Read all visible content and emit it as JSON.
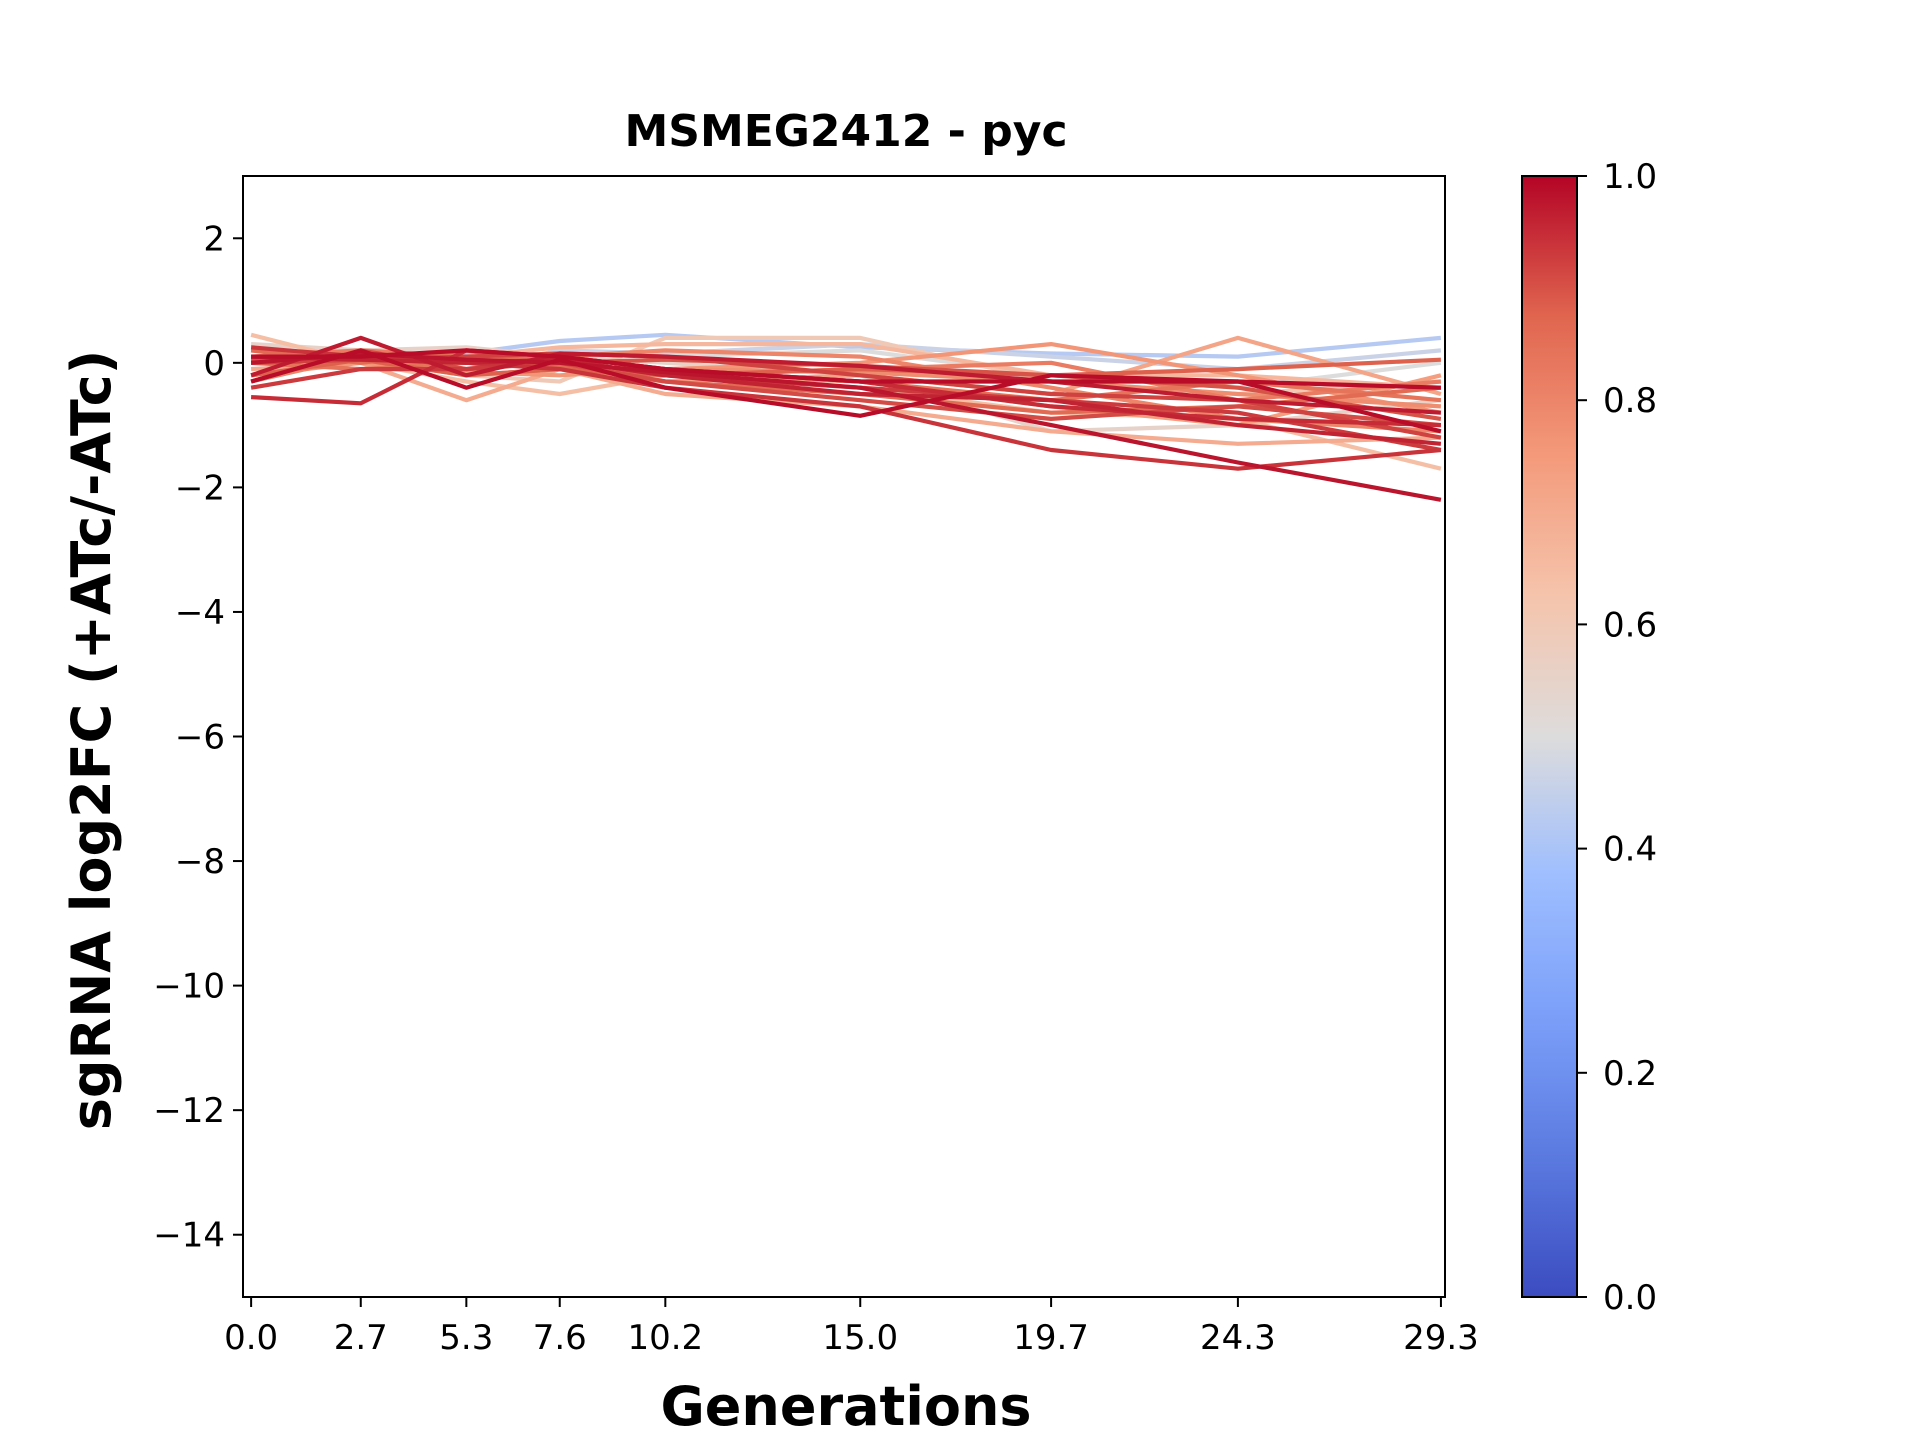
{
  "chart_data": {
    "type": "line",
    "title": "MSMEG2412 - pyc",
    "xlabel": "Generations",
    "ylabel": "sgRNA log2FC (+ATc/-ATc)",
    "x": [
      0.0,
      2.7,
      5.3,
      7.6,
      10.2,
      15.0,
      19.7,
      24.3,
      29.3
    ],
    "x_tick_labels": [
      "0.0",
      "2.7",
      "5.3",
      "7.6",
      "10.2",
      "15.0",
      "19.7",
      "24.3",
      "29.3"
    ],
    "xlim": [
      -0.2,
      29.4
    ],
    "ylim": [
      -15,
      3
    ],
    "y_ticks": [
      2,
      0,
      -2,
      -4,
      -6,
      -8,
      -10,
      -12,
      -14
    ],
    "y_tick_labels": [
      "2",
      "0",
      "−2",
      "−4",
      "−6",
      "−8",
      "−10",
      "−12",
      "−14"
    ],
    "grid": false,
    "colorbar": {
      "colormap": "coolwarm",
      "range": [
        0.0,
        1.0
      ],
      "ticks": [
        0.0,
        0.2,
        0.4,
        0.6,
        0.8,
        1.0
      ],
      "tick_labels": [
        "0.0",
        "0.2",
        "0.4",
        "0.6",
        "0.8",
        "1.0"
      ],
      "stops": [
        {
          "v": 0.0,
          "color": "#3b4cc0"
        },
        {
          "v": 0.125,
          "color": "#5b7ae0"
        },
        {
          "v": 0.25,
          "color": "#7b9ff9"
        },
        {
          "v": 0.375,
          "color": "#9ebeff"
        },
        {
          "v": 0.5,
          "color": "#dddcdc"
        },
        {
          "v": 0.625,
          "color": "#f5c4ac"
        },
        {
          "v": 0.75,
          "color": "#f49a7b"
        },
        {
          "v": 0.875,
          "color": "#e0654f"
        },
        {
          "v": 1.0,
          "color": "#b40426"
        }
      ]
    },
    "series": [
      {
        "score": 0.42,
        "values": [
          0.05,
          0.1,
          0.15,
          0.35,
          0.45,
          0.25,
          0.15,
          0.1,
          0.4
        ]
      },
      {
        "score": 0.46,
        "values": [
          0.0,
          0.05,
          -0.1,
          0.2,
          0.15,
          0.3,
          0.1,
          -0.1,
          0.2
        ]
      },
      {
        "score": 0.5,
        "values": [
          0.1,
          0.2,
          0.05,
          0.15,
          0.1,
          0.2,
          -0.2,
          -0.4,
          0.0
        ]
      },
      {
        "score": 0.55,
        "values": [
          0.3,
          0.2,
          0.25,
          0.1,
          0.0,
          -0.2,
          -1.1,
          -1.0,
          -0.6
        ]
      },
      {
        "score": 0.6,
        "values": [
          0.2,
          0.15,
          -0.2,
          -0.3,
          0.4,
          0.4,
          -0.3,
          -0.5,
          -0.3
        ]
      },
      {
        "score": 0.64,
        "values": [
          0.45,
          0.0,
          -0.3,
          -0.5,
          -0.2,
          -0.4,
          -0.8,
          -0.9,
          -1.7
        ]
      },
      {
        "score": 0.66,
        "values": [
          0.0,
          0.1,
          0.1,
          0.25,
          0.3,
          0.3,
          -0.2,
          -0.2,
          -0.4
        ]
      },
      {
        "score": 0.7,
        "values": [
          -0.1,
          0.0,
          -0.6,
          -0.1,
          -0.5,
          -0.7,
          -1.1,
          -1.3,
          -1.2
        ]
      },
      {
        "score": 0.72,
        "values": [
          0.0,
          0.05,
          -0.2,
          -0.1,
          -0.3,
          -0.2,
          -0.5,
          0.4,
          -0.5
        ]
      },
      {
        "score": 0.74,
        "values": [
          0.2,
          0.15,
          0.05,
          -0.1,
          -0.2,
          -0.3,
          -0.7,
          -1.0,
          -0.2
        ]
      },
      {
        "score": 0.76,
        "values": [
          -0.2,
          0.0,
          -0.15,
          -0.2,
          -0.1,
          0.0,
          0.3,
          -0.2,
          -0.8
        ]
      },
      {
        "score": 0.78,
        "values": [
          0.1,
          0.05,
          0.0,
          -0.05,
          -0.1,
          -0.15,
          -0.3,
          -0.5,
          -0.7
        ]
      },
      {
        "score": 0.8,
        "values": [
          -0.3,
          0.1,
          -0.1,
          0.1,
          0.2,
          0.1,
          -0.4,
          -0.9,
          -1.1
        ]
      },
      {
        "score": 0.82,
        "values": [
          0.1,
          0.2,
          0.1,
          0.0,
          -0.2,
          -0.1,
          0.0,
          -0.6,
          -0.3
        ]
      },
      {
        "score": 0.84,
        "values": [
          0.0,
          -0.1,
          0.0,
          0.1,
          -0.1,
          -0.3,
          -0.6,
          -0.3,
          -0.6
        ]
      },
      {
        "score": 0.86,
        "values": [
          0.2,
          0.0,
          0.2,
          -0.05,
          -0.3,
          -0.5,
          -0.8,
          -0.7,
          -0.4
        ]
      },
      {
        "score": 0.88,
        "values": [
          -0.2,
          0.05,
          -0.2,
          -0.1,
          -0.2,
          -0.1,
          -0.2,
          -0.1,
          0.05
        ]
      },
      {
        "score": 0.9,
        "values": [
          0.05,
          0.1,
          0.05,
          0.0,
          0.05,
          -0.05,
          -0.2,
          -0.4,
          -0.9
        ]
      },
      {
        "score": 0.91,
        "values": [
          -0.3,
          0.2,
          -0.1,
          0.0,
          -0.3,
          -0.6,
          -0.9,
          -0.7,
          -1.0
        ]
      },
      {
        "score": 0.92,
        "values": [
          0.0,
          0.05,
          0.1,
          0.15,
          0.1,
          -0.2,
          -0.5,
          -0.6,
          -1.2
        ]
      },
      {
        "score": 0.93,
        "values": [
          -0.4,
          -0.1,
          -0.1,
          0.05,
          -0.2,
          -0.4,
          -0.6,
          -0.8,
          -1.4
        ]
      },
      {
        "score": 0.94,
        "values": [
          0.25,
          0.1,
          0.0,
          -0.1,
          -0.4,
          -0.7,
          -1.4,
          -1.7,
          -1.4
        ]
      },
      {
        "score": 0.95,
        "values": [
          -0.55,
          -0.65,
          0.2,
          0.1,
          -0.1,
          -0.3,
          -0.7,
          -0.9,
          -1.0
        ]
      },
      {
        "score": 0.96,
        "values": [
          0.1,
          0.05,
          0.0,
          0.05,
          -0.2,
          -0.5,
          -0.6,
          -1.0,
          -1.3
        ]
      },
      {
        "score": 0.97,
        "values": [
          -0.2,
          0.4,
          -0.2,
          0.15,
          0.1,
          -0.05,
          -0.3,
          -0.6,
          -0.8
        ]
      },
      {
        "score": 0.98,
        "values": [
          0.0,
          0.15,
          0.05,
          0.0,
          -0.15,
          -0.4,
          -1.0,
          -1.6,
          -2.2
        ]
      },
      {
        "score": 0.99,
        "values": [
          0.1,
          0.1,
          0.2,
          0.1,
          -0.1,
          -0.3,
          -0.3,
          -0.3,
          -1.1
        ]
      },
      {
        "score": 0.99,
        "values": [
          -0.3,
          0.2,
          -0.4,
          0.05,
          -0.4,
          -0.85,
          -0.2,
          -0.3,
          -0.4
        ]
      }
    ]
  }
}
